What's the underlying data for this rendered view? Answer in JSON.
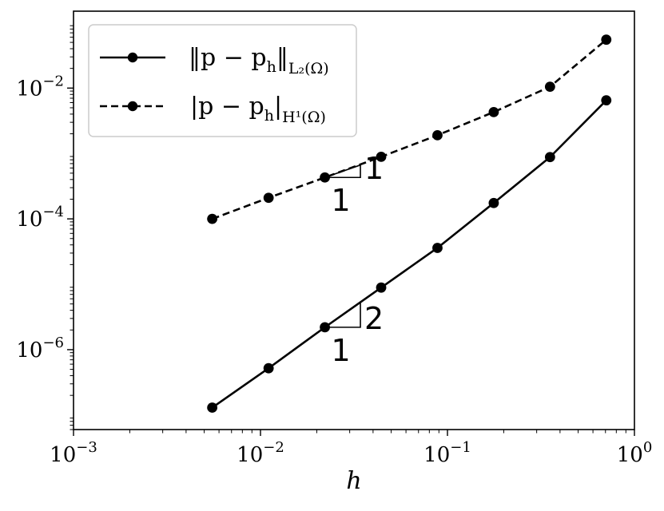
{
  "chart_data": {
    "type": "line",
    "xlabel": "h",
    "ylabel": "",
    "x_scale": "log",
    "y_scale": "log",
    "xlim": [
      0.001,
      1
    ],
    "ylim": [
      6e-08,
      0.15
    ],
    "x_ticks": [
      {
        "value": 0.001,
        "base": "10",
        "exp": "−3"
      },
      {
        "value": 0.01,
        "base": "10",
        "exp": "−2"
      },
      {
        "value": 0.1,
        "base": "10",
        "exp": "−1"
      },
      {
        "value": 1,
        "base": "10",
        "exp": "0"
      }
    ],
    "y_ticks": [
      {
        "value": 1e-06,
        "base": "10",
        "exp": "−6"
      },
      {
        "value": 0.0001,
        "base": "10",
        "exp": "−4"
      },
      {
        "value": 0.01,
        "base": "10",
        "exp": "−2"
      }
    ],
    "grid": false,
    "legend_position": "top-left",
    "x": [
      0.00552,
      0.01105,
      0.0221,
      0.0442,
      0.0884,
      0.1768,
      0.3536,
      0.7071
    ],
    "series": [
      {
        "name_main": "‖p − p",
        "name_sub_h": "h",
        "name_close": "‖",
        "name_norm": "L₂(Ω)",
        "style": "solid",
        "color": "#000000",
        "values": [
          1.3e-07,
          5.2e-07,
          2.2e-06,
          8.9e-06,
          3.6e-05,
          0.000175,
          0.00088,
          0.0065
        ]
      },
      {
        "name_main": "|p − p",
        "name_sub_h": "h",
        "name_close": "|",
        "name_norm": "H¹(Ω)",
        "style": "dashed",
        "color": "#000000",
        "values": [
          0.0001,
          0.00021,
          0.00043,
          0.00089,
          0.0019,
          0.0043,
          0.0105,
          0.055
        ]
      }
    ],
    "annotations": [
      {
        "type": "slope-triangle",
        "series": 1,
        "at_x": 0.0221,
        "at_y": 0.00043,
        "dx_decades": 0.19,
        "rise": "1",
        "run": "1"
      },
      {
        "type": "slope-triangle",
        "series": 0,
        "at_x": 0.0221,
        "at_y": 2.2e-06,
        "dx_decades": 0.19,
        "rise": "2",
        "run": "1"
      }
    ]
  }
}
